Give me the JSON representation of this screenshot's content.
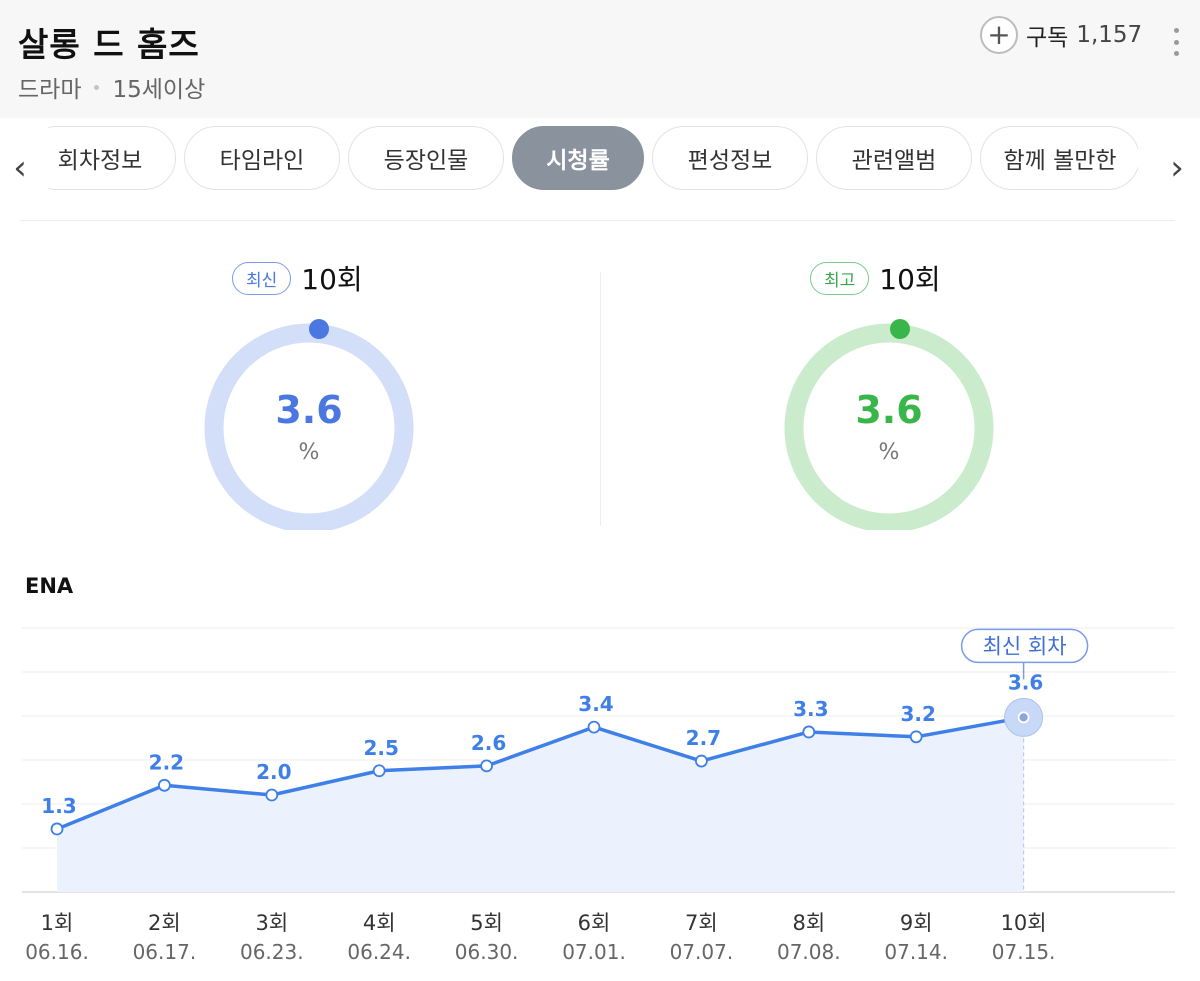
{
  "header": {
    "title": "살롱 드 홈즈",
    "genre": "드라마",
    "age_rating": "15세이상",
    "subscribe_label": "구독",
    "subscribe_count": "1,157"
  },
  "tabs": [
    {
      "label": "회차정보",
      "active": false
    },
    {
      "label": "타임라인",
      "active": false
    },
    {
      "label": "등장인물",
      "active": false
    },
    {
      "label": "시청률",
      "active": true
    },
    {
      "label": "편성정보",
      "active": false
    },
    {
      "label": "관련앨범",
      "active": false
    },
    {
      "label": "함께 볼만한",
      "active": false
    }
  ],
  "latest": {
    "badge": "최신",
    "episode": "10회",
    "value": "3.6",
    "unit": "%",
    "color": "#4a78e0",
    "track_color": "#d3dff8"
  },
  "best": {
    "badge": "최고",
    "episode": "10회",
    "value": "3.6",
    "unit": "%",
    "color": "#3ab54a",
    "track_color": "#cbeccc"
  },
  "chart": {
    "channel": "ENA",
    "latest_marker": "최신 회차"
  },
  "chart_data": {
    "type": "area",
    "categories": [
      "1회",
      "2회",
      "3회",
      "4회",
      "5회",
      "6회",
      "7회",
      "8회",
      "9회",
      "10회"
    ],
    "dates": [
      "06.16.",
      "06.17.",
      "06.23.",
      "06.24.",
      "06.30.",
      "07.01.",
      "07.07.",
      "07.08.",
      "07.14.",
      "07.15."
    ],
    "series": [
      {
        "name": "ENA",
        "values": [
          1.3,
          2.2,
          2.0,
          2.5,
          2.6,
          3.4,
          2.7,
          3.3,
          3.2,
          3.6
        ]
      }
    ],
    "line_color": "#3f7fe8",
    "fill_color": "#ebf2fd",
    "grid": true
  }
}
